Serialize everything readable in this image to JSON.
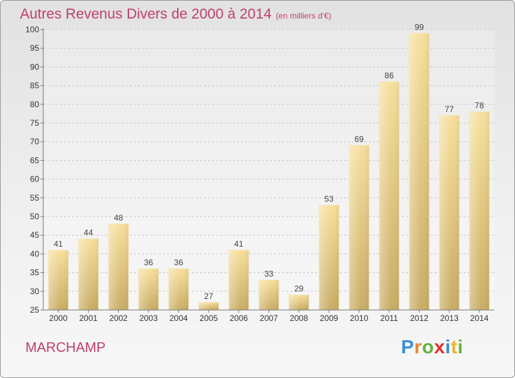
{
  "header": {
    "title": "Autres Revenus Divers de 2000 à 2014",
    "subtitle": "(en milliers d'€)"
  },
  "footer": {
    "place": "MARCHAMP",
    "logo_letters": [
      {
        "ch": "P",
        "color": "#3d8fd6"
      },
      {
        "ch": "r",
        "color": "#e8862a"
      },
      {
        "ch": "o",
        "color": "#62b33d"
      },
      {
        "ch": "x",
        "color": "#e0312f"
      },
      {
        "ch": "i",
        "color": "#3d8fd6"
      },
      {
        "ch": "t",
        "color": "#e8b42a"
      },
      {
        "ch": "i",
        "color": "#62b33d"
      }
    ]
  },
  "chart_data": {
    "type": "bar",
    "title": "Autres Revenus Divers de 2000 à 2014",
    "subtitle": "(en milliers d'€)",
    "categories": [
      "2000",
      "2001",
      "2002",
      "2003",
      "2004",
      "2005",
      "2006",
      "2007",
      "2008",
      "2009",
      "2010",
      "2011",
      "2012",
      "2013",
      "2014"
    ],
    "values": [
      41,
      44,
      48,
      36,
      36,
      27,
      41,
      33,
      29,
      53,
      69,
      86,
      99,
      77,
      78
    ],
    "ylim": [
      25,
      100
    ],
    "yticks": [
      25,
      30,
      35,
      40,
      45,
      50,
      55,
      60,
      65,
      70,
      75,
      80,
      85,
      90,
      95,
      100
    ],
    "grid": true,
    "bar_color": "#ecd28e",
    "title_color": "#c0406a"
  }
}
